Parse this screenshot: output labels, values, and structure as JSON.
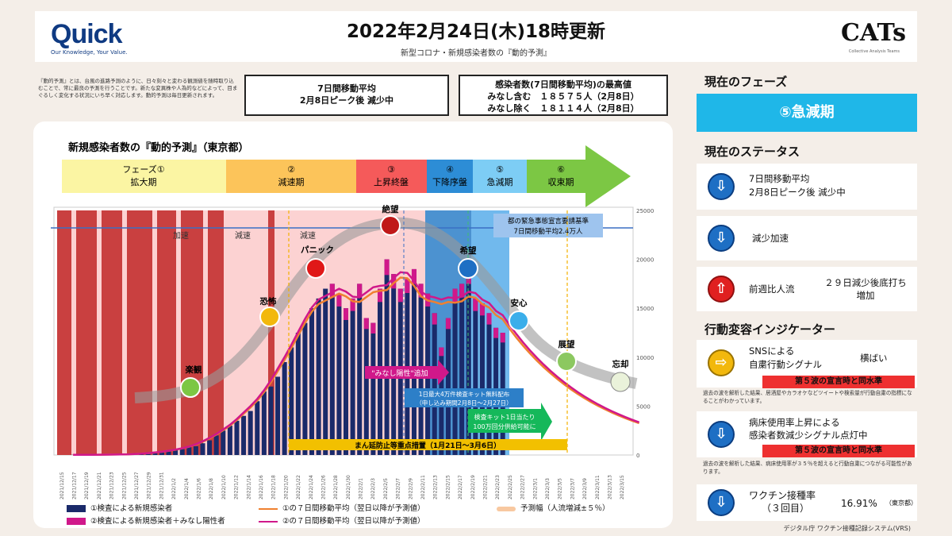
{
  "header": {
    "quick_logo": "Quick",
    "quick_tagline": "Our Knowledge, Your Value.",
    "title": "2022年2月24日(木)18時更新",
    "subtitle": "新型コロナ・新規感染者数の『動的予測』",
    "cats_logo": "CATs",
    "cats_tagline": "Collective Analysis Teams"
  },
  "description": "『動的予測』とは、台風の進路予測のように、日々刻々と変わる観測値を随時取り込むことで、常に最良の予測を行うことです。新たな変異株や人為的などによって、目まぐるしく変化する状況にいち早く対応します。動的予測は毎日更新されます。",
  "box1": {
    "line1": "7日間移動平均",
    "line2": "2月8日ピーク後 減少中"
  },
  "box2": {
    "line1": "感染者数(7日間移動平均)の最高値",
    "line2": "みなし含む　１８５７５人（2月8日）",
    "line3": "みなし除く　１８１１４人（2月8日）"
  },
  "chart": {
    "title": "新規感染者数の『動的予測』（東京都）",
    "phases": [
      "フェーズ①",
      "拡大期",
      "②",
      "減速期",
      "③",
      "上昇終盤",
      "④",
      "下降序盤",
      "⑤",
      "急減期",
      "⑥",
      "収束期"
    ],
    "emergency": "都の緊急事態宣言要請基準",
    "emergency2": "7日間移動平均2.4万人",
    "region_labels": [
      "加速",
      "減速",
      "減速"
    ],
    "curve_labels": [
      "楽観",
      "恐怖",
      "パニック",
      "絶望",
      "希望",
      "安心",
      "展望",
      "忘却"
    ],
    "anno_minashi": "\"みなし陽性\"追加",
    "anno_kit1": "1日最大4万件検査キット無料配布",
    "anno_kit2": "（申し込み期間2月8日～2月27日）",
    "anno_kit3": "検査キット1日当たり",
    "anno_kit4": "100万回分供給可能に",
    "anno_manen": "まん延防止等重点措置（1月21日～3月6日）"
  },
  "legend": {
    "l1": "①検査による新規感染者",
    "l2": "②検査による新規感染者＋みなし陽性者",
    "l3": "①の７日間移動平均（翌日以降が予測値）",
    "l4": "②の７日間移動平均（翌日以降が予測値）",
    "l5": "予測幅（人流増減±５％）"
  },
  "right": {
    "phase_title": "現在のフェーズ",
    "phase_value": "⑤急減期",
    "status_title": "現在のステータス",
    "s1a": "7日間移動平均",
    "s1b": "2月8日ピーク後 減少中",
    "s2": "減少加速",
    "s3a": "前週比人流",
    "s3b": "２９日減少後底打ち",
    "s3c": "増加",
    "ind_title": "行動変容インジケーター",
    "i1a": "SNSによる",
    "i1b": "自粛行動シグナル",
    "i1c": "横ばい",
    "i1band": "第５波の宣言時と同水準",
    "i1note": "過去の波を解析した結果、居酒屋やカラオケなどツイートや検索量が行動自粛の指標になることがわかっています。",
    "i2a": "病床使用率上昇による",
    "i2b": "感染者数減少シグナル点灯中",
    "i2band": "第５波の宣言時と同水準",
    "i2note": "過去の波を解析した結果、病床使用率が３５％を超えると行動自粛につながる可能性があります。",
    "i3a": "ワクチン接種率",
    "i3b": "（３回目）",
    "i3c": "16.91%",
    "i3d": "（東京都）",
    "footer": "デジタル庁 ワクチン接種記録システム(VRS)"
  },
  "chart_data": {
    "type": "bar",
    "title": "新規感染者数の『動的予測』（東京都）",
    "ylim": [
      0,
      25000
    ],
    "yticks": [
      0,
      5000,
      10000,
      15000,
      20000,
      25000
    ],
    "categories": [
      "2021/12/15",
      "2021/12/17",
      "2021/12/19",
      "2021/12/21",
      "2021/12/23",
      "2021/12/25",
      "2021/12/27",
      "2021/12/29",
      "2021/12/31",
      "2022/1/2",
      "2022/1/4",
      "2022/1/6",
      "2022/1/8",
      "2022/1/10",
      "2022/1/12",
      "2022/1/14",
      "2022/1/16",
      "2022/1/18",
      "2022/1/20",
      "2022/1/22",
      "2022/1/24",
      "2022/1/26",
      "2022/1/28",
      "2022/1/30",
      "2022/2/1",
      "2022/2/3",
      "2022/2/5",
      "2022/2/7",
      "2022/2/9",
      "2022/2/11",
      "2022/2/13",
      "2022/2/15",
      "2022/2/17",
      "2022/2/19",
      "2022/2/21",
      "2022/2/23",
      "2022/2/25",
      "2022/2/27",
      "2022/3/1",
      "2022/3/3",
      "2022/3/5",
      "2022/3/7",
      "2022/3/9",
      "2022/3/11",
      "2022/3/13",
      "2022/3/15"
    ],
    "bars": [
      20,
      20,
      22,
      25,
      30,
      35,
      40,
      50,
      70,
      80,
      90,
      130,
      250,
      300,
      400,
      500,
      600,
      800,
      900,
      1200,
      1500,
      2000,
      2500,
      3000,
      3500,
      4000,
      4500,
      5500,
      6500,
      7000,
      8000,
      9500,
      11000,
      12500,
      13500,
      15000,
      16000,
      17000,
      17500,
      16500,
      15000,
      16000,
      17500,
      14000,
      13500,
      17000,
      20000,
      18500,
      17000,
      18000,
      19000,
      17500,
      16500,
      14500,
      11000,
      14000,
      17000,
      17500,
      19000,
      16000,
      15500,
      14500,
      13000,
      12500
    ],
    "series": [
      {
        "name": "①の７日間移動平均（翌日以降が予測値）",
        "color": "#f08030"
      },
      {
        "name": "②の７日間移動平均（翌日以降が予測値）",
        "color": "#d0188a"
      }
    ]
  }
}
